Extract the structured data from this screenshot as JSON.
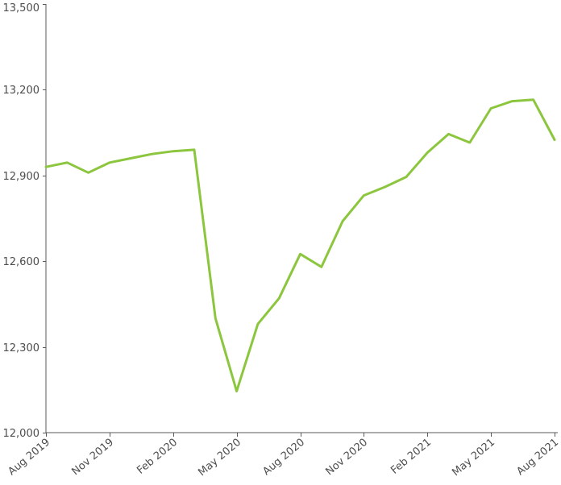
{
  "chart": {
    "series_color": "#8CC63E",
    "axis_color": "#58595B",
    "tick_color": "#58595B",
    "label_color": "#4D4D4D",
    "background_color": "#FFFFFF"
  },
  "chart_data": {
    "type": "line",
    "title": "",
    "xlabel": "",
    "ylabel": "",
    "grid": false,
    "legend": false,
    "markers": false,
    "ylim": [
      12000,
      13500
    ],
    "x": [
      "Aug 2019",
      "Sep 2019",
      "Oct 2019",
      "Nov 2019",
      "Dec 2019",
      "Jan 2020",
      "Feb 2020",
      "Mar 2020",
      "Apr 2020",
      "May 2020",
      "Jun 2020",
      "Jul 2020",
      "Aug 2020",
      "Sep 2020",
      "Oct 2020",
      "Nov 2020",
      "Dec 2020",
      "Jan 2021",
      "Feb 2021",
      "Mar 2021",
      "Apr 2021",
      "May 2021",
      "Jun 2021",
      "Jul 2021",
      "Aug 2021"
    ],
    "values": [
      12930,
      12945,
      12910,
      12945,
      12960,
      12975,
      12985,
      12990,
      12400,
      12145,
      12380,
      12470,
      12625,
      12580,
      12740,
      12830,
      12860,
      12895,
      12980,
      13045,
      13015,
      13135,
      13160,
      13165,
      13025
    ],
    "x_tick_every": 3,
    "x_tick_labels": [
      "Aug 2019",
      "Nov 2019",
      "Feb 2020",
      "May 2020",
      "Aug 2020",
      "Nov 2020",
      "Feb 2021",
      "May 2021",
      "Aug 2021"
    ],
    "y_ticks": [
      12000,
      12300,
      12600,
      12900,
      13200,
      13500
    ],
    "y_tick_labels": [
      "12,000",
      "12,300",
      "12,600",
      "12,900",
      "13,200",
      "13,500"
    ]
  }
}
